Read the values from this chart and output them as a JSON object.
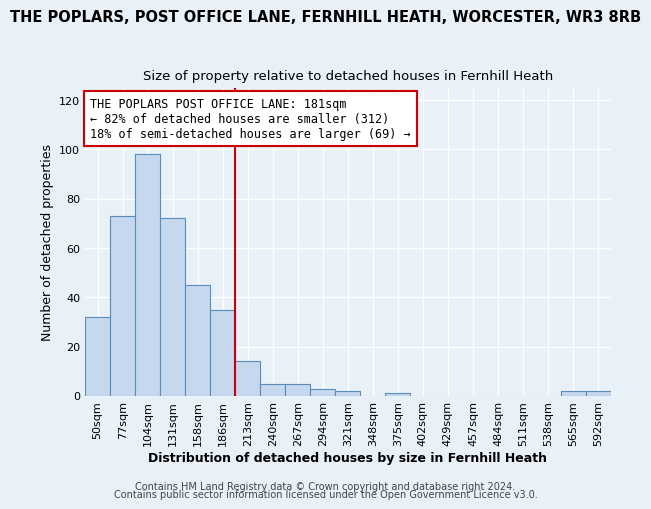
{
  "title": "THE POPLARS, POST OFFICE LANE, FERNHILL HEATH, WORCESTER, WR3 8RB",
  "subtitle": "Size of property relative to detached houses in Fernhill Heath",
  "xlabel": "Distribution of detached houses by size in Fernhill Heath",
  "ylabel": "Number of detached properties",
  "categories": [
    "50sqm",
    "77sqm",
    "104sqm",
    "131sqm",
    "158sqm",
    "186sqm",
    "213sqm",
    "240sqm",
    "267sqm",
    "294sqm",
    "321sqm",
    "348sqm",
    "375sqm",
    "402sqm",
    "429sqm",
    "457sqm",
    "484sqm",
    "511sqm",
    "538sqm",
    "565sqm",
    "592sqm"
  ],
  "values": [
    32,
    73,
    98,
    72,
    45,
    35,
    14,
    5,
    5,
    3,
    2,
    0,
    1,
    0,
    0,
    0,
    0,
    0,
    0,
    2,
    2
  ],
  "bar_color": "#c5d8ee",
  "bar_edge_color": "#5b8db8",
  "property_line_index": 5,
  "property_line_color": "#cc0000",
  "annotation_box_color": "#cc0000",
  "annotation_line1": "THE POPLARS POST OFFICE LANE: 181sqm",
  "annotation_line2": "← 82% of detached houses are smaller (312)",
  "annotation_line3": "18% of semi-detached houses are larger (69) →",
  "ylim": [
    0,
    125
  ],
  "yticks": [
    0,
    20,
    40,
    60,
    80,
    100,
    120
  ],
  "footer1": "Contains HM Land Registry data © Crown copyright and database right 2024.",
  "footer2": "Contains public sector information licensed under the Open Government Licence v3.0.",
  "background_color": "#e8f0f8",
  "grid_color": "#ffffff",
  "title_fontsize": 10.5,
  "subtitle_fontsize": 9.5,
  "annotation_fontsize": 8.5,
  "xlabel_fontsize": 9,
  "ylabel_fontsize": 9,
  "tick_fontsize": 8,
  "footer_fontsize": 7
}
